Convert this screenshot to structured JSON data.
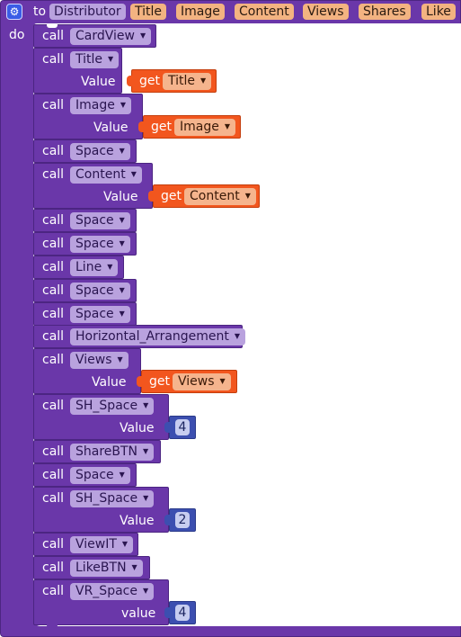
{
  "header": {
    "to_label": "to",
    "proc_name": "Distributor",
    "params": [
      "Title",
      "Image",
      "Content",
      "Views",
      "Shares",
      "Like"
    ],
    "do_label": "do",
    "gear_icon": "gear-icon"
  },
  "blocks": [
    {
      "call": "call",
      "name": "CardView"
    },
    {
      "call": "call",
      "name": "Title",
      "value_label": "Value",
      "get_label": "get",
      "get_var": "Title"
    },
    {
      "call": "call",
      "name": "Image",
      "value_label": "Value",
      "get_label": "get",
      "get_var": "Image"
    },
    {
      "call": "call",
      "name": "Space"
    },
    {
      "call": "call",
      "name": "Content",
      "value_label": "Value",
      "get_label": "get",
      "get_var": "Content"
    },
    {
      "call": "call",
      "name": "Space"
    },
    {
      "call": "call",
      "name": "Space"
    },
    {
      "call": "call",
      "name": "Line"
    },
    {
      "call": "call",
      "name": "Space"
    },
    {
      "call": "call",
      "name": "Space"
    },
    {
      "call": "call",
      "name": "Horizontal_Arrangement"
    },
    {
      "call": "call",
      "name": "Views",
      "value_label": "Value",
      "get_label": "get",
      "get_var": "Views"
    },
    {
      "call": "call",
      "name": "SH_Space",
      "value_label": "Value",
      "number": "4"
    },
    {
      "call": "call",
      "name": "ShareBTN"
    },
    {
      "call": "call",
      "name": "Space"
    },
    {
      "call": "call",
      "name": "SH_Space",
      "value_label": "Value",
      "number": "2"
    },
    {
      "call": "call",
      "name": "ViewIT"
    },
    {
      "call": "call",
      "name": "LikeBTN"
    },
    {
      "call": "call",
      "name": "VR_Space",
      "value_label": "value",
      "number": "4"
    }
  ],
  "colors": {
    "procedure": "#6a37a9",
    "get_block": "#f2561e",
    "number_block": "#3c4fb0",
    "param_chip": "#f3b381"
  }
}
